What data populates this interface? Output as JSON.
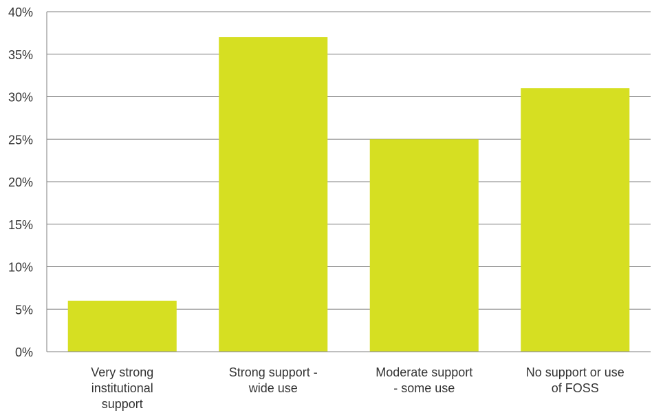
{
  "chart_data": {
    "type": "bar",
    "categories": [
      [
        "Very strong",
        "institutional",
        "support"
      ],
      [
        "Strong support -",
        "wide use"
      ],
      [
        "Moderate support",
        "- some use"
      ],
      [
        "No support or use",
        "of FOSS"
      ]
    ],
    "values": [
      6,
      37,
      25,
      31
    ],
    "ylim": [
      0,
      40
    ],
    "yticks": [
      0,
      5,
      10,
      15,
      20,
      25,
      30,
      35,
      40
    ],
    "ytick_format": "percent",
    "title": "",
    "xlabel": "",
    "ylabel": "",
    "grid": "horizontal",
    "legend": "none",
    "colors": {
      "bar": "#d6df22",
      "grid": "#7f7f7f",
      "axis": "#7f7f7f",
      "text": "#333333"
    }
  }
}
